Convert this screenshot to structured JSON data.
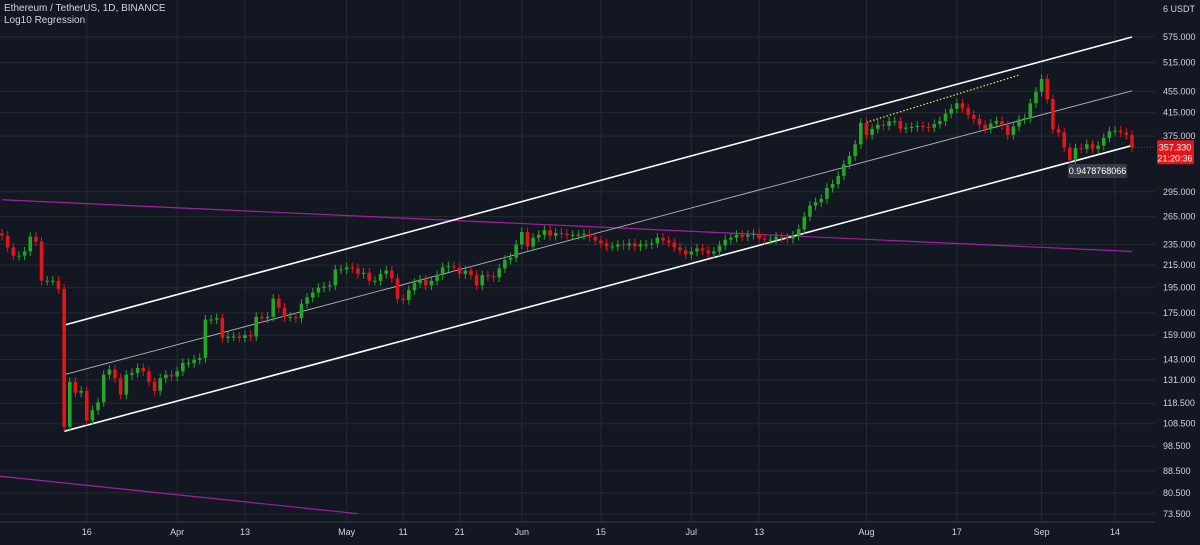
{
  "legend": {
    "symbol": "Ethereum / TetherUS, 1D, BINANCE",
    "indicator": "Log10 Regression"
  },
  "colors": {
    "background": "#131722",
    "grid": "#262a35",
    "axis_text": "#d1d4dc",
    "up": "#26a626",
    "down": "#e0161b",
    "channel": "#ffffff",
    "midline": "#b2b5be",
    "trendline": "#a020a0",
    "dotted": "#ffe64d",
    "price_badge": "#e0161b",
    "value_badge": "#363a45"
  },
  "chart_data": {
    "type": "candlestick",
    "title": "Ethereum / TetherUS, 1D, BINANCE",
    "indicator": "Log10 Regression",
    "y_scale": "log",
    "ylim": [
      69,
      660
    ],
    "y_unit": "USDT",
    "y_unit_label": "6 USDT",
    "y_ticks": [
      "575.000",
      "515.000",
      "455.000",
      "415.000",
      "375.000",
      "295.000",
      "265.000",
      "235.000",
      "215.000",
      "195.000",
      "175.000",
      "159.000",
      "143.000",
      "131.000",
      "118.500",
      "108.500",
      "98.500",
      "88.500",
      "80.500",
      "73.500"
    ],
    "x_ticks": [
      "16",
      "Apr",
      "13",
      "May",
      "11",
      "21",
      "Jun",
      "15",
      "Jul",
      "13",
      "Aug",
      "17",
      "Sep",
      "14"
    ],
    "dates": [
      "2020-03-01",
      "2020-03-02",
      "2020-03-03",
      "2020-03-04",
      "2020-03-05",
      "2020-03-06",
      "2020-03-07",
      "2020-03-08",
      "2020-03-09",
      "2020-03-10",
      "2020-03-11",
      "2020-03-12",
      "2020-03-13",
      "2020-03-14",
      "2020-03-15",
      "2020-03-16",
      "2020-03-17",
      "2020-03-18",
      "2020-03-19",
      "2020-03-20",
      "2020-03-21",
      "2020-03-22",
      "2020-03-23",
      "2020-03-24",
      "2020-03-25",
      "2020-03-26",
      "2020-03-27",
      "2020-03-28",
      "2020-03-29",
      "2020-03-30",
      "2020-03-31",
      "2020-04-01",
      "2020-04-02",
      "2020-04-03",
      "2020-04-04",
      "2020-04-05",
      "2020-04-06",
      "2020-04-07",
      "2020-04-08",
      "2020-04-09",
      "2020-04-10",
      "2020-04-11",
      "2020-04-12",
      "2020-04-13",
      "2020-04-14",
      "2020-04-15",
      "2020-04-16",
      "2020-04-17",
      "2020-04-18",
      "2020-04-19",
      "2020-04-20",
      "2020-04-21",
      "2020-04-22",
      "2020-04-23",
      "2020-04-24",
      "2020-04-25",
      "2020-04-26",
      "2020-04-27",
      "2020-04-28",
      "2020-04-29",
      "2020-04-30",
      "2020-05-01",
      "2020-05-02",
      "2020-05-03",
      "2020-05-04",
      "2020-05-05",
      "2020-05-06",
      "2020-05-07",
      "2020-05-08",
      "2020-05-09",
      "2020-05-10",
      "2020-05-11",
      "2020-05-12",
      "2020-05-13",
      "2020-05-14",
      "2020-05-15",
      "2020-05-16",
      "2020-05-17",
      "2020-05-18",
      "2020-05-19",
      "2020-05-20",
      "2020-05-21",
      "2020-05-22",
      "2020-05-23",
      "2020-05-24",
      "2020-05-25",
      "2020-05-26",
      "2020-05-27",
      "2020-05-28",
      "2020-05-29",
      "2020-05-30",
      "2020-05-31",
      "2020-06-01",
      "2020-06-02",
      "2020-06-03",
      "2020-06-04",
      "2020-06-05",
      "2020-06-06",
      "2020-06-07",
      "2020-06-08",
      "2020-06-09",
      "2020-06-10",
      "2020-06-11",
      "2020-06-12",
      "2020-06-13",
      "2020-06-14",
      "2020-06-15",
      "2020-06-16",
      "2020-06-17",
      "2020-06-18",
      "2020-06-19",
      "2020-06-20",
      "2020-06-21",
      "2020-06-22",
      "2020-06-23",
      "2020-06-24",
      "2020-06-25",
      "2020-06-26",
      "2020-06-27",
      "2020-06-28",
      "2020-06-29",
      "2020-06-30",
      "2020-07-01",
      "2020-07-02",
      "2020-07-03",
      "2020-07-04",
      "2020-07-05",
      "2020-07-06",
      "2020-07-07",
      "2020-07-08",
      "2020-07-09",
      "2020-07-10",
      "2020-07-11",
      "2020-07-12",
      "2020-07-13",
      "2020-07-14",
      "2020-07-15",
      "2020-07-16",
      "2020-07-17",
      "2020-07-18",
      "2020-07-19",
      "2020-07-20",
      "2020-07-21",
      "2020-07-22",
      "2020-07-23",
      "2020-07-24",
      "2020-07-25",
      "2020-07-26",
      "2020-07-27",
      "2020-07-28",
      "2020-07-29",
      "2020-07-30",
      "2020-07-31",
      "2020-08-01",
      "2020-08-02",
      "2020-08-03",
      "2020-08-04",
      "2020-08-05",
      "2020-08-06",
      "2020-08-07",
      "2020-08-08",
      "2020-08-09",
      "2020-08-10",
      "2020-08-11",
      "2020-08-12",
      "2020-08-13",
      "2020-08-14",
      "2020-08-15",
      "2020-08-16",
      "2020-08-17",
      "2020-08-18",
      "2020-08-19",
      "2020-08-20",
      "2020-08-21",
      "2020-08-22",
      "2020-08-23",
      "2020-08-24",
      "2020-08-25",
      "2020-08-26",
      "2020-08-27",
      "2020-08-28",
      "2020-08-29",
      "2020-08-30",
      "2020-08-31",
      "2020-09-01",
      "2020-09-02",
      "2020-09-03",
      "2020-09-04",
      "2020-09-05",
      "2020-09-06",
      "2020-09-07",
      "2020-09-08",
      "2020-09-09",
      "2020-09-10",
      "2020-09-11",
      "2020-09-12",
      "2020-09-13",
      "2020-09-14",
      "2020-09-15",
      "2020-09-16",
      "2020-09-17"
    ],
    "close": [
      244,
      232,
      224,
      224,
      228,
      243,
      238,
      201,
      201,
      201,
      194,
      107,
      130,
      124,
      125,
      110,
      115,
      119,
      134,
      137,
      132,
      123,
      134,
      135,
      138,
      136,
      130,
      125,
      132,
      134,
      133,
      136,
      141,
      141,
      143,
      144,
      170,
      170,
      171,
      157,
      158,
      158,
      157,
      159,
      158,
      172,
      171,
      172,
      186,
      179,
      172,
      172,
      171,
      182,
      187,
      191,
      195,
      196,
      197,
      211,
      211,
      213,
      212,
      207,
      208,
      201,
      201,
      207,
      210,
      203,
      186,
      185,
      193,
      199,
      202,
      197,
      201,
      206,
      213,
      214,
      213,
      207,
      210,
      206,
      197,
      206,
      205,
      204,
      212,
      220,
      222,
      235,
      248,
      233,
      242,
      245,
      250,
      244,
      247,
      246,
      245,
      245,
      245,
      246,
      243,
      239,
      236,
      233,
      233,
      235,
      234,
      236,
      233,
      235,
      235,
      236,
      242,
      239,
      237,
      232,
      229,
      225,
      228,
      231,
      229,
      226,
      228,
      234,
      240,
      242,
      245,
      243,
      245,
      246,
      241,
      240,
      240,
      243,
      242,
      241,
      244,
      251,
      265,
      278,
      282,
      286,
      300,
      305,
      316,
      332,
      344,
      362,
      397,
      377,
      387,
      394,
      392,
      400,
      400,
      387,
      389,
      390,
      392,
      390,
      389,
      395,
      400,
      413,
      422,
      432,
      423,
      411,
      404,
      394,
      387,
      396,
      400,
      393,
      377,
      391,
      403,
      405,
      432,
      454,
      480,
      440,
      386,
      381,
      357,
      338,
      356,
      355,
      362,
      355,
      360,
      372,
      383,
      384,
      381,
      377,
      357
    ]
  },
  "price_badge": {
    "price": "357.330",
    "countdown": "21:20:36"
  },
  "value_badge": "0.9478768066"
}
